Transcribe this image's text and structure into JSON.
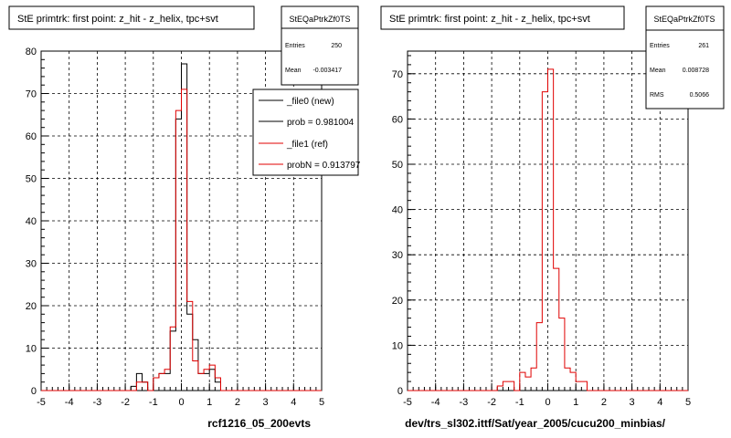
{
  "footer_label": "",
  "colors": {
    "new": "#000000",
    "ref": "#e00000",
    "grid": "#000000",
    "frame": "#000000"
  },
  "chart_data": [
    {
      "type": "histogram",
      "title": "StE primtrk: first point: z_hit - z_helix, tpc+svt",
      "xlabel": "rcf1216_05_200evts",
      "ylabel": "",
      "xlim": [
        -5,
        5
      ],
      "ylim": [
        0,
        80
      ],
      "x_ticks": [
        -5,
        -4,
        -3,
        -2,
        -1,
        0,
        1,
        2,
        3,
        4,
        5
      ],
      "y_ticks": [
        0,
        10,
        20,
        30,
        40,
        50,
        60,
        70,
        80
      ],
      "grid": true,
      "stats": {
        "name": "StEQaPtrkZf0TS",
        "rows": [
          {
            "label": "Entries",
            "value": "250"
          },
          {
            "label": "Mean",
            "value": "-0.003417"
          }
        ]
      },
      "legend": {
        "placement": "top-right",
        "entries": [
          {
            "label": "_file0 (new)",
            "series": 0
          },
          {
            "label": "prob = 0.981004",
            "series": 0
          },
          {
            "label": "_file1 (ref)",
            "series": 1
          },
          {
            "label": "probN = 0.913797",
            "series": 1
          }
        ]
      },
      "bin_edges_start": -5,
      "bin_width": 0.2,
      "series": [
        {
          "color": "#000000",
          "values": [
            0,
            0,
            0,
            0,
            0,
            0,
            0,
            0,
            0,
            0,
            0,
            0,
            0,
            0,
            0,
            0,
            1,
            4,
            2,
            0,
            3,
            4,
            4,
            14,
            64,
            77,
            18,
            12,
            4,
            4,
            5,
            2,
            0,
            0,
            0,
            0,
            0,
            0,
            0,
            0,
            0,
            0,
            0,
            0,
            0,
            0,
            0,
            0,
            0,
            0
          ]
        },
        {
          "color": "#e00000",
          "values": [
            0,
            0,
            0,
            0,
            0,
            0,
            0,
            0,
            0,
            0,
            0,
            0,
            0,
            0,
            0,
            0,
            0,
            2,
            2,
            0,
            3,
            4,
            5,
            15,
            66,
            71,
            21,
            7,
            4,
            5,
            6,
            3,
            0,
            0,
            0,
            0,
            0,
            0,
            0,
            0,
            0,
            0,
            0,
            0,
            0,
            0,
            0,
            0,
            0,
            0
          ]
        }
      ]
    },
    {
      "type": "histogram",
      "title": "StE primtrk: first point: z_hit - z_helix, tpc+svt",
      "xlabel": "dev/trs_sl302.ittf/Sat/year_2005/cucu200_minbias/",
      "ylabel": "",
      "xlim": [
        -5,
        5
      ],
      "ylim": [
        0,
        75
      ],
      "x_ticks": [
        -5,
        -4,
        -3,
        -2,
        -1,
        0,
        1,
        2,
        3,
        4,
        5
      ],
      "y_ticks": [
        0,
        10,
        20,
        30,
        40,
        50,
        60,
        70
      ],
      "grid": true,
      "stats": {
        "name": "StEQaPtrkZf0TS",
        "rows": [
          {
            "label": "Entries",
            "value": "261"
          },
          {
            "label": "Mean",
            "value": "0.008728"
          },
          {
            "label": "RMS",
            "value": "0.5066"
          }
        ]
      },
      "bin_edges_start": -5,
      "bin_width": 0.2,
      "series": [
        {
          "color": "#e00000",
          "values": [
            0,
            0,
            0,
            0,
            0,
            0,
            0,
            0,
            0,
            0,
            0,
            0,
            0,
            0,
            0,
            0,
            1,
            2,
            2,
            0,
            4,
            3,
            5,
            15,
            66,
            71,
            27,
            16,
            5,
            4,
            2,
            2,
            0,
            0,
            0,
            0,
            0,
            0,
            0,
            0,
            0,
            0,
            0,
            0,
            0,
            0,
            0,
            0,
            0,
            0
          ]
        }
      ]
    }
  ]
}
